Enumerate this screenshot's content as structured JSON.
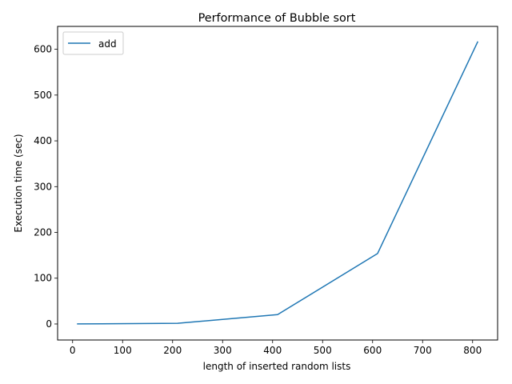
{
  "chart_data": {
    "type": "line",
    "title": "Performance of Bubble sort",
    "xlabel": "length of inserted random lists",
    "ylabel": "Execution time (sec)",
    "xlim": [
      -30,
      850
    ],
    "ylim": [
      -35,
      650
    ],
    "xticks": [
      0,
      100,
      200,
      300,
      400,
      500,
      600,
      700,
      800
    ],
    "yticks": [
      0,
      100,
      200,
      300,
      400,
      500,
      600
    ],
    "grid": false,
    "legend_position": "upper-left",
    "series": [
      {
        "name": "add",
        "color": "#1f77b4",
        "x": [
          10,
          210,
          410,
          610,
          810
        ],
        "y": [
          0.1,
          1.5,
          20.5,
          154.0,
          616.0
        ]
      }
    ]
  }
}
